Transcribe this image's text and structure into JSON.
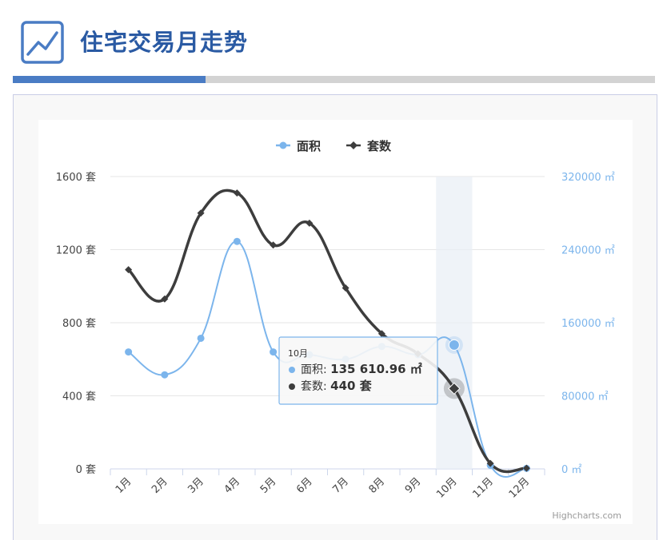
{
  "header": {
    "title": "住宅交易月走势",
    "icon": "line-chart-icon",
    "progress": 0.3
  },
  "colors": {
    "area_series": "#7cb5ec",
    "count_series": "#3d3d3d",
    "title": "#2a5aa3",
    "progress": "#4a7cc4"
  },
  "credits": "Highcharts.com",
  "chart_data": {
    "type": "line",
    "smooth": true,
    "categories": [
      "1月",
      "2月",
      "3月",
      "4月",
      "5月",
      "6月",
      "7月",
      "8月",
      "9月",
      "10月",
      "11月",
      "12月"
    ],
    "legend": {
      "position": "top-center"
    },
    "grid": true,
    "y_left": {
      "min": 0,
      "max": 1600,
      "ticks": [
        "0 套",
        "400 套",
        "800 套",
        "1200 套",
        "1600 套"
      ]
    },
    "y_right": {
      "min": 0,
      "max": 320000,
      "ticks": [
        "0 ㎡",
        "80000 ㎡",
        "160000 ㎡",
        "240000 ㎡",
        "320000 ㎡"
      ]
    },
    "series": [
      {
        "name": "面积",
        "axis": "right",
        "marker": "circle",
        "values": [
          128000,
          103000,
          143000,
          249000,
          128000,
          125000,
          120000,
          134000,
          125000,
          135610.96,
          4000,
          600
        ]
      },
      {
        "name": "套数",
        "axis": "left",
        "marker": "diamond",
        "values": [
          1090,
          930,
          1400,
          1510,
          1225,
          1345,
          990,
          740,
          630,
          440,
          30,
          4
        ]
      }
    ],
    "tooltip": {
      "header": "10月",
      "category_index": 9,
      "rows": [
        {
          "label": "面积: ",
          "value": "135 610.96 ㎡"
        },
        {
          "label": "套数: ",
          "value": "440 套"
        }
      ]
    }
  }
}
